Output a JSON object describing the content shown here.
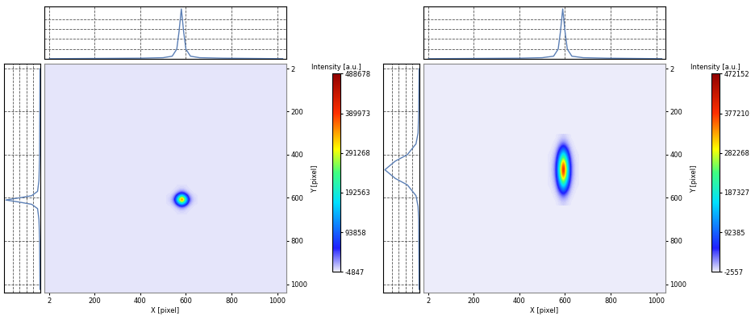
{
  "chart_data": [
    {
      "type": "heatmap",
      "x_label": "X [pixel]",
      "y_label": "Y [pixel]",
      "colorbar_label": "Intensity [a.u.]",
      "xlim": [
        -20,
        1040
      ],
      "ylim": [
        1040,
        -20
      ],
      "xticks": [
        2,
        200,
        400,
        600,
        800,
        1000
      ],
      "yticks": [
        2,
        200,
        400,
        600,
        800,
        1000
      ],
      "cells_x": [
        520,
        535,
        550,
        565,
        580,
        595,
        610,
        625,
        640
      ],
      "cells_y": [
        550,
        565,
        580,
        595,
        610,
        625,
        640,
        655,
        670
      ],
      "cells": [
        [
          12,
          49,
          244,
          1222,
          2443,
          1222,
          244,
          49,
          12
        ],
        [
          49,
          195,
          977,
          4887,
          9774,
          4887,
          977,
          195,
          49
        ],
        [
          244,
          977,
          4887,
          24434,
          48868,
          24434,
          4887,
          977,
          244
        ],
        [
          1222,
          4887,
          24434,
          122170,
          244339,
          122170,
          24434,
          4887,
          1222
        ],
        [
          2443,
          9774,
          48868,
          244339,
          488678,
          244339,
          48868,
          9774,
          2443
        ],
        [
          1222,
          4887,
          24434,
          122170,
          244339,
          122170,
          24434,
          4887,
          1222
        ],
        [
          244,
          977,
          4887,
          24434,
          48868,
          24434,
          4887,
          977,
          244
        ],
        [
          49,
          195,
          977,
          4887,
          9774,
          4887,
          977,
          195,
          49
        ],
        [
          12,
          49,
          244,
          1222,
          2443,
          1222,
          244,
          49,
          12
        ]
      ],
      "colorbar_range": [
        -4847,
        488678
      ],
      "colorbar_ticks": [
        -4847,
        93858,
        192563,
        291268,
        389973,
        488678
      ],
      "x_profile": {
        "type": "line",
        "color": "#5b7fb5",
        "line_style": "solid",
        "grid": true,
        "tick_labels": false,
        "x": [
          2,
          400,
          500,
          540,
          560,
          570,
          580,
          590,
          600,
          620,
          660,
          760,
          1024
        ],
        "values": [
          0.01,
          0.02,
          0.03,
          0.06,
          0.2,
          0.55,
          1,
          0.55,
          0.2,
          0.06,
          0.03,
          0.02,
          0.01
        ]
      },
      "y_profile": {
        "type": "line",
        "color": "#5b7fb5",
        "line_style": "solid",
        "grid": true,
        "tick_labels": false,
        "y": [
          2,
          400,
          520,
          570,
          590,
          600,
          610,
          620,
          630,
          650,
          700,
          800,
          1024
        ],
        "values": [
          0.01,
          0.02,
          0.04,
          0.08,
          0.25,
          0.6,
          1,
          0.6,
          0.25,
          0.08,
          0.04,
          0.02,
          0.01
        ]
      },
      "profile_lim": [
        0,
        1.05
      ],
      "profile_ticks": [
        0.2,
        0.4,
        0.6,
        0.8
      ]
    },
    {
      "type": "heatmap",
      "x_label": "X [pixel]",
      "y_label": "Y [pixel]",
      "colorbar_label": "Intensity [a.u.]",
      "xlim": [
        -20,
        1040
      ],
      "ylim": [
        1040,
        -20
      ],
      "xticks": [
        2,
        200,
        400,
        600,
        800,
        1000
      ],
      "yticks": [
        2,
        200,
        400,
        600,
        800,
        1000
      ],
      "cells_x": [
        530,
        545,
        560,
        575,
        590,
        605,
        620,
        635,
        650
      ],
      "cells_y": [
        320,
        350,
        380,
        410,
        440,
        470,
        500,
        530,
        560,
        590,
        620
      ],
      "cells": [
        [
          35,
          142,
          708,
          3541,
          7082,
          3541,
          708,
          142,
          35
        ],
        [
          165,
          661,
          3305,
          16525,
          33051,
          16525,
          3305,
          661,
          165
        ],
        [
          590,
          2361,
          11804,
          59019,
          118038,
          59019,
          11804,
          2361,
          590
        ],
        [
          1298,
          5194,
          25968,
          129842,
          259684,
          129842,
          25968,
          5194,
          1298
        ],
        [
          2007,
          8027,
          40133,
          200665,
          401329,
          200665,
          40133,
          8027,
          2007
        ],
        [
          2361,
          9443,
          47215,
          236076,
          472152,
          236076,
          47215,
          9443,
          2361
        ],
        [
          2007,
          8027,
          40133,
          200665,
          401329,
          200665,
          40133,
          8027,
          2007
        ],
        [
          1298,
          5194,
          25968,
          129842,
          259684,
          129842,
          25968,
          5194,
          1298
        ],
        [
          590,
          2361,
          11804,
          59019,
          118038,
          59019,
          11804,
          2361,
          590
        ],
        [
          165,
          661,
          3305,
          16525,
          33051,
          16525,
          3305,
          661,
          165
        ],
        [
          35,
          142,
          708,
          3541,
          7082,
          3541,
          708,
          142,
          35
        ]
      ],
      "colorbar_range": [
        -2557,
        472152
      ],
      "colorbar_ticks": [
        -2557,
        92385,
        187327,
        282268,
        377210,
        472152
      ],
      "x_profile": {
        "type": "line",
        "color": "#5b7fb5",
        "line_style": "solid",
        "grid": true,
        "tick_labels": false,
        "x": [
          2,
          400,
          500,
          550,
          570,
          580,
          590,
          600,
          610,
          630,
          680,
          780,
          1024
        ],
        "values": [
          0.01,
          0.02,
          0.03,
          0.06,
          0.2,
          0.55,
          1,
          0.55,
          0.2,
          0.06,
          0.03,
          0.02,
          0.01
        ]
      },
      "y_profile": {
        "type": "line",
        "color": "#5b7fb5",
        "line_style": "solid",
        "grid": true,
        "tick_labels": false,
        "y": [
          2,
          200,
          300,
          350,
          400,
          430,
          470,
          510,
          540,
          590,
          640,
          700,
          1024
        ],
        "values": [
          0.01,
          0.02,
          0.04,
          0.1,
          0.35,
          0.7,
          1,
          0.7,
          0.35,
          0.1,
          0.04,
          0.02,
          0.01
        ]
      },
      "profile_lim": [
        0,
        1.05
      ],
      "profile_ticks": [
        0.2,
        0.4,
        0.6,
        0.8
      ]
    }
  ]
}
